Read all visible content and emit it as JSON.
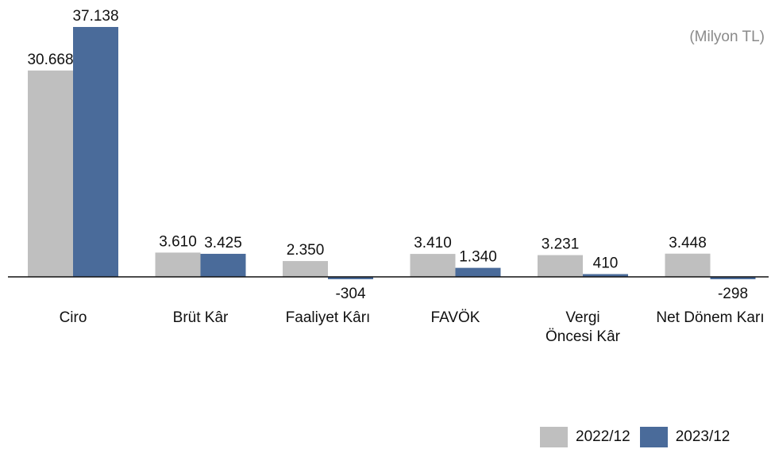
{
  "chart_data": {
    "type": "bar",
    "unit_label": "(Milyon TL)",
    "categories": [
      [
        "Ciro"
      ],
      [
        "Brüt Kâr"
      ],
      [
        "Faaliyet Kârı"
      ],
      [
        "FAVÖK"
      ],
      [
        "Vergi",
        "Öncesi Kâr"
      ],
      [
        "Net Dönem Karı"
      ]
    ],
    "series": [
      {
        "name": "2022/12",
        "color": "#bfbfbf",
        "values": [
          30668,
          3610,
          2350,
          3410,
          3231,
          3448
        ],
        "labels": [
          "30.668",
          "3.610",
          "2.350",
          "3.410",
          "3.231",
          "3.448"
        ]
      },
      {
        "name": "2023/12",
        "color": "#4a6b9a",
        "values": [
          37138,
          3425,
          -304,
          1340,
          410,
          -298
        ],
        "labels": [
          "37.138",
          "3.425",
          "-304",
          "1.340",
          "410",
          "-298"
        ]
      }
    ],
    "legend_position": "bottom-right",
    "grid": false
  }
}
